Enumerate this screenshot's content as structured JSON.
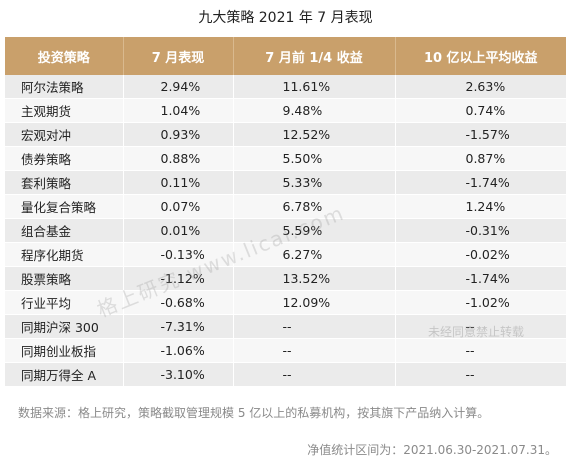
{
  "title": "九大策略 2021 年 7 月表现",
  "table": {
    "headers": [
      "投资策略",
      "7 月表现",
      "7 月前 1/4 收益",
      "10 亿以上平均收益"
    ],
    "rows": [
      [
        "阿尔法策略",
        "2.94%",
        "11.61%",
        "2.63%"
      ],
      [
        "主观期货",
        "1.04%",
        "9.48%",
        "0.74%"
      ],
      [
        "宏观对冲",
        "0.93%",
        "12.52%",
        "-1.57%"
      ],
      [
        "债券策略",
        "0.88%",
        "5.50%",
        "0.87%"
      ],
      [
        "套利策略",
        "0.11%",
        "5.33%",
        "-1.74%"
      ],
      [
        "量化复合策略",
        "0.07%",
        "6.78%",
        "1.24%"
      ],
      [
        "组合基金",
        "0.01%",
        "5.59%",
        "-0.31%"
      ],
      [
        "程序化期货",
        "-0.13%",
        "6.27%",
        "-0.02%"
      ],
      [
        "股票策略",
        "-1.12%",
        "13.52%",
        "-1.74%"
      ],
      [
        "行业平均",
        "-0.68%",
        "12.09%",
        "-1.02%"
      ],
      [
        "同期沪深 300",
        "-7.31%",
        "--",
        "--"
      ],
      [
        "同期创业板指",
        "-1.06%",
        "--",
        "--"
      ],
      [
        "同期万得全 A",
        "-3.10%",
        "--",
        "--"
      ]
    ]
  },
  "watermarks": {
    "center": "格上研究  www.licai.com",
    "corner": "未经同意禁止转载"
  },
  "footnote": "数据来源：格上研究，策略截取管理规模 5 亿以上的私募机构，按其旗下产品纳入计算。",
  "period": "净值统计区间为：2021.06.30-2021.07.31。",
  "colors": {
    "header_bg": "#c9a06b",
    "row_odd": "#ebebeb",
    "row_even": "#f7f7f7"
  }
}
